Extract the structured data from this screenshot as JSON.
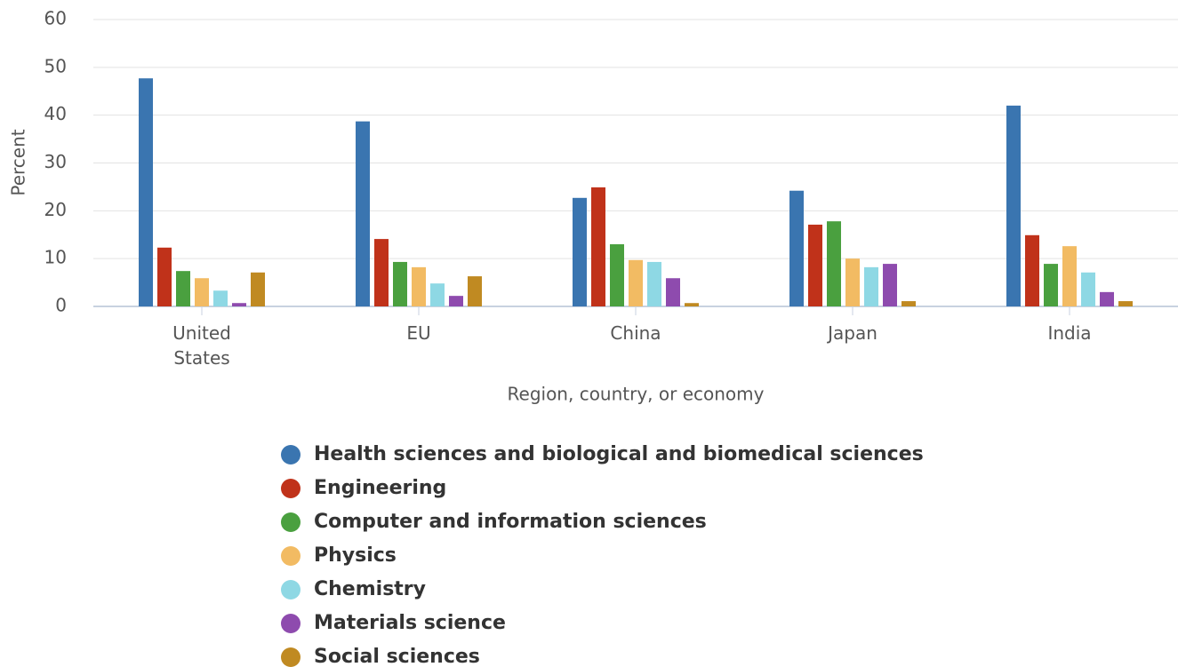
{
  "chart_data": {
    "type": "bar",
    "ylabel": "Percent",
    "xlabel": "Region, country, or economy",
    "categories": [
      "United States",
      "EU",
      "China",
      "Japan",
      "India"
    ],
    "series": [
      {
        "name": "Health sciences and biological and biomedical sciences",
        "color": "#3a75b0",
        "values": [
          47.7,
          38.7,
          22.7,
          24.2,
          42.0
        ]
      },
      {
        "name": "Engineering",
        "color": "#c0321a",
        "values": [
          12.3,
          14.1,
          24.9,
          17.1,
          14.9
        ]
      },
      {
        "name": "Computer and information sciences",
        "color": "#4aa03f",
        "values": [
          7.4,
          9.3,
          13.0,
          17.8,
          8.9
        ]
      },
      {
        "name": "Physics",
        "color": "#f2bb63",
        "values": [
          5.9,
          8.2,
          9.7,
          10.0,
          12.6
        ]
      },
      {
        "name": "Chemistry",
        "color": "#8ed8e4",
        "values": [
          3.3,
          4.8,
          9.3,
          8.2,
          7.1
        ]
      },
      {
        "name": "Materials science",
        "color": "#8e4bae",
        "values": [
          0.7,
          2.2,
          5.9,
          8.9,
          3.0
        ]
      },
      {
        "name": "Social sciences",
        "color": "#c08a22",
        "values": [
          7.1,
          6.3,
          0.7,
          1.1,
          1.1
        ]
      }
    ],
    "ylim": [
      0,
      60
    ],
    "yticks": [
      0,
      10,
      20,
      30,
      40,
      50,
      60
    ],
    "grid": true,
    "legend": "bottom"
  }
}
